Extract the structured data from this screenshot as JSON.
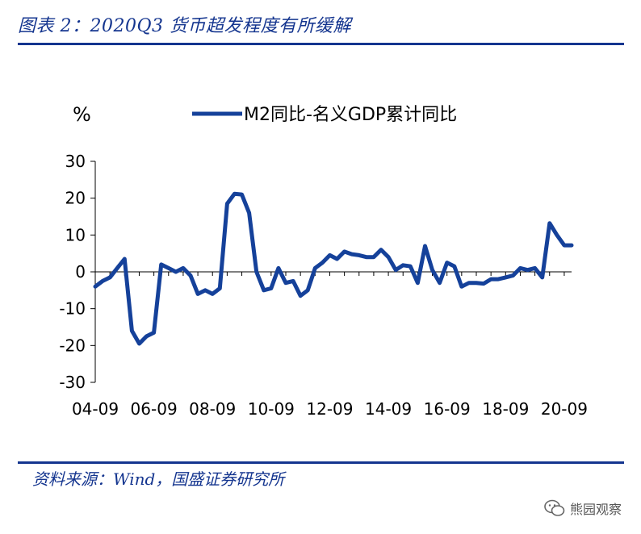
{
  "header": {
    "title": "图表 2：2020Q3 货币超发程度有所缓解"
  },
  "footer": {
    "source": "资料来源：Wind，国盛证券研究所",
    "watermark": "熊园观察"
  },
  "colors": {
    "brand": "#14358f",
    "series": "#15419a"
  },
  "chart_data": {
    "type": "line",
    "ylabel": "%",
    "ylim": [
      -30,
      30
    ],
    "yticks": [
      30,
      20,
      10,
      0,
      -10,
      -20,
      -30
    ],
    "xticks": [
      "04-09",
      "06-09",
      "08-09",
      "10-09",
      "12-09",
      "14-09",
      "16-09",
      "18-09",
      "20-09"
    ],
    "legend_position": "top-center",
    "series": [
      {
        "name": "M2同比-名义GDP累计同比",
        "x": [
          2004.5,
          2004.75,
          2005.0,
          2005.25,
          2005.5,
          2005.75,
          2006.0,
          2006.25,
          2006.5,
          2006.75,
          2007.0,
          2007.25,
          2007.5,
          2007.75,
          2008.0,
          2008.25,
          2008.5,
          2008.75,
          2009.0,
          2009.25,
          2009.5,
          2009.75,
          2010.0,
          2010.25,
          2010.5,
          2010.75,
          2011.0,
          2011.25,
          2011.5,
          2011.75,
          2012.0,
          2012.25,
          2012.5,
          2012.75,
          2013.0,
          2013.25,
          2013.5,
          2013.75,
          2014.0,
          2014.25,
          2014.5,
          2014.75,
          2015.0,
          2015.25,
          2015.5,
          2015.75,
          2016.0,
          2016.25,
          2016.5,
          2016.75,
          2017.0,
          2017.25,
          2017.5,
          2017.75,
          2018.0,
          2018.25,
          2018.5,
          2018.75,
          2019.0,
          2019.25,
          2019.5,
          2019.75,
          2020.0,
          2020.25,
          2020.5,
          2020.75
        ],
        "values": [
          -4,
          -2.5,
          -1.5,
          1,
          3.5,
          -16,
          -19.5,
          -17.5,
          -16.5,
          2,
          1,
          0,
          1,
          -1,
          -6,
          -5,
          -6,
          -4.5,
          18.5,
          21.2,
          21,
          16,
          0,
          -5,
          -4.5,
          1,
          -3,
          -2.5,
          -6.5,
          -5,
          1,
          2.5,
          4.5,
          3.5,
          5.5,
          4.8,
          4.5,
          4,
          4,
          6,
          4,
          0.5,
          1.8,
          1.5,
          -3,
          7,
          0.5,
          -3,
          2.5,
          1.5,
          -4,
          -3,
          -3,
          -3.2,
          -2,
          -2,
          -1.5,
          -1,
          1,
          0.5,
          1,
          -1.5,
          13.2,
          10,
          7.2,
          7.2
        ]
      }
    ]
  }
}
